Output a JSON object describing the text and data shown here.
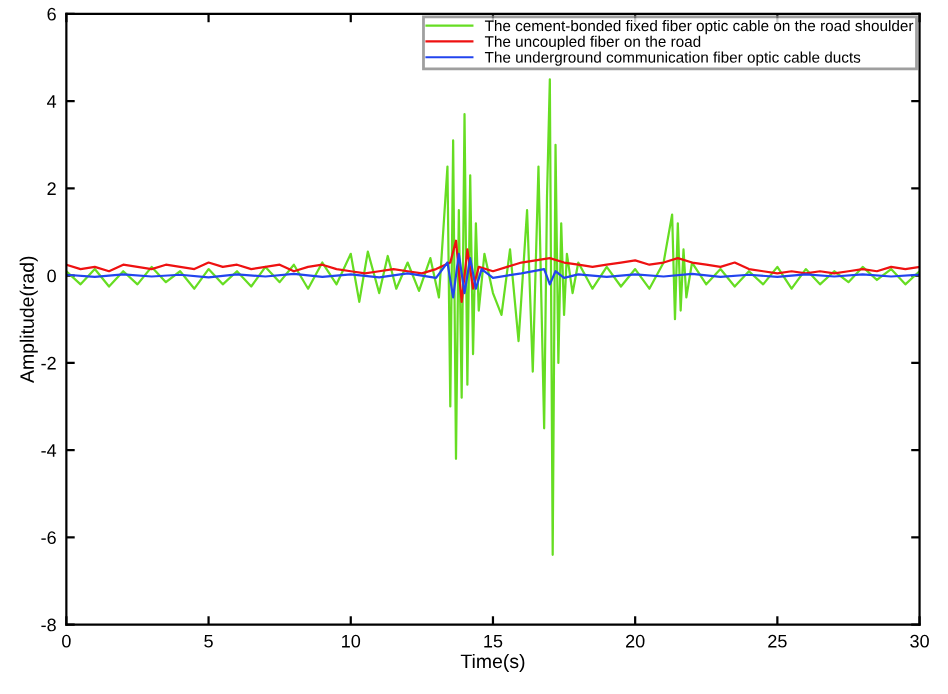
{
  "chart_data": {
    "type": "line",
    "xlabel": "Time(s)",
    "ylabel": "Amplitude(rad)",
    "xlim": [
      0,
      30
    ],
    "ylim": [
      -8,
      6
    ],
    "xticks": [
      0,
      5,
      10,
      15,
      20,
      25,
      30
    ],
    "yticks": [
      -8,
      -6,
      -4,
      -2,
      0,
      2,
      4,
      6
    ],
    "grid": false,
    "legend": "top right",
    "line_style": "solid",
    "marker": "none",
    "series": [
      {
        "name": "The cement-bonded fixed fiber optic cable on the road shoulder",
        "color": "#66dd22",
        "x": [
          0,
          0.5,
          1,
          1.5,
          2,
          2.5,
          3,
          3.5,
          4,
          4.5,
          5,
          5.5,
          6,
          6.5,
          7,
          7.5,
          8,
          8.5,
          9,
          9.5,
          10,
          10.3,
          10.6,
          11,
          11.3,
          11.6,
          12,
          12.4,
          12.8,
          13.1,
          13.4,
          13.5,
          13.6,
          13.7,
          13.8,
          13.9,
          14.0,
          14.1,
          14.2,
          14.3,
          14.4,
          14.5,
          14.7,
          15,
          15.3,
          15.6,
          15.9,
          16.2,
          16.4,
          16.6,
          16.8,
          16.9,
          17.0,
          17.1,
          17.2,
          17.3,
          17.4,
          17.5,
          17.6,
          17.8,
          18,
          18.5,
          19,
          19.5,
          20,
          20.5,
          21,
          21.3,
          21.4,
          21.5,
          21.6,
          21.7,
          21.8,
          22,
          22.5,
          23,
          23.5,
          24,
          24.5,
          25,
          25.5,
          26,
          26.5,
          27,
          27.5,
          28,
          28.5,
          29,
          29.5,
          30
        ],
        "values": [
          0.1,
          -0.2,
          0.15,
          -0.25,
          0.1,
          -0.2,
          0.2,
          -0.15,
          0.1,
          -0.3,
          0.15,
          -0.2,
          0.1,
          -0.25,
          0.2,
          -0.15,
          0.25,
          -0.3,
          0.3,
          -0.2,
          0.5,
          -0.6,
          0.55,
          -0.4,
          0.45,
          -0.3,
          0.3,
          -0.35,
          0.4,
          -0.5,
          2.5,
          -3.0,
          3.1,
          -4.2,
          1.5,
          -2.8,
          3.7,
          -2.5,
          2.3,
          -1.8,
          1.2,
          -0.8,
          0.5,
          -0.4,
          -0.9,
          0.6,
          -1.5,
          1.5,
          -2.2,
          2.5,
          -3.5,
          1.8,
          4.5,
          -6.4,
          3.0,
          -2.0,
          1.2,
          -0.9,
          0.5,
          -0.4,
          0.3,
          -0.3,
          0.2,
          -0.25,
          0.15,
          -0.3,
          0.3,
          1.4,
          -1.0,
          1.2,
          -0.8,
          0.6,
          -0.5,
          0.3,
          -0.2,
          0.15,
          -0.25,
          0.1,
          -0.2,
          0.2,
          -0.3,
          0.15,
          -0.2,
          0.1,
          -0.15,
          0.2,
          -0.1,
          0.15,
          -0.2,
          0.1
        ]
      },
      {
        "name": "The uncoupled fiber on the road",
        "color": "#ee1111",
        "x": [
          0,
          0.5,
          1,
          1.5,
          2,
          2.5,
          3,
          3.5,
          4,
          4.5,
          5,
          5.5,
          6,
          6.5,
          7,
          7.5,
          8,
          8.5,
          9,
          9.5,
          10,
          10.5,
          11,
          11.5,
          12,
          12.5,
          13,
          13.5,
          13.7,
          13.9,
          14.1,
          14.3,
          14.5,
          15,
          15.5,
          16,
          16.5,
          17,
          17.5,
          18,
          18.5,
          19,
          19.5,
          20,
          20.5,
          21,
          21.5,
          22,
          22.5,
          23,
          23.5,
          24,
          24.5,
          25,
          25.5,
          26,
          26.5,
          27,
          27.5,
          28,
          28.5,
          29,
          29.5,
          30
        ],
        "values": [
          0.25,
          0.15,
          0.2,
          0.1,
          0.25,
          0.2,
          0.15,
          0.25,
          0.2,
          0.15,
          0.3,
          0.2,
          0.25,
          0.15,
          0.2,
          0.25,
          0.1,
          0.2,
          0.25,
          0.15,
          0.1,
          0.05,
          0.1,
          0.15,
          0.1,
          0.05,
          0.15,
          0.3,
          0.8,
          -0.6,
          0.6,
          -0.3,
          0.2,
          0.1,
          0.2,
          0.3,
          0.35,
          0.4,
          0.3,
          0.25,
          0.2,
          0.25,
          0.3,
          0.35,
          0.25,
          0.3,
          0.4,
          0.3,
          0.25,
          0.2,
          0.3,
          0.15,
          0.1,
          0.05,
          0.1,
          0.05,
          0.1,
          0.05,
          0.1,
          0.15,
          0.1,
          0.2,
          0.15,
          0.2
        ]
      },
      {
        "name": "The underground communication fiber optic cable ducts",
        "color": "#2244ee",
        "x": [
          0,
          1,
          2,
          3,
          4,
          5,
          6,
          7,
          8,
          9,
          10,
          11,
          12,
          13,
          13.4,
          13.6,
          13.8,
          14.0,
          14.2,
          14.4,
          14.6,
          15,
          16,
          16.8,
          17.0,
          17.2,
          17.5,
          18,
          19,
          20,
          21,
          22,
          23,
          24,
          25,
          26,
          27,
          28,
          29,
          30
        ],
        "values": [
          0.02,
          -0.03,
          0.03,
          -0.02,
          0.02,
          -0.04,
          0.03,
          -0.02,
          0.04,
          -0.03,
          0.03,
          -0.04,
          0.05,
          -0.05,
          0.3,
          -0.5,
          0.5,
          -0.4,
          0.4,
          -0.3,
          0.15,
          -0.05,
          0.05,
          0.15,
          -0.2,
          0.1,
          -0.05,
          0.03,
          -0.03,
          0.03,
          -0.02,
          0.04,
          -0.03,
          0.02,
          -0.03,
          0.03,
          -0.02,
          0.03,
          -0.02,
          0.02
        ]
      }
    ]
  }
}
